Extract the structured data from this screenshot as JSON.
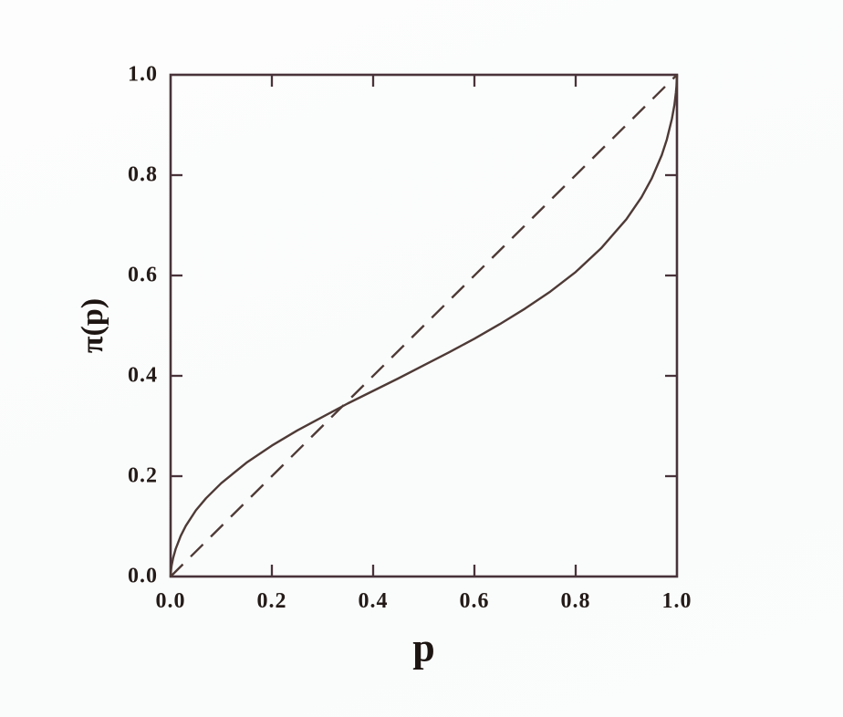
{
  "colors": {
    "background": "#fbfdfc",
    "frame": "#49333a",
    "line_ink": "#4e3a36",
    "text_ink": "#241b18"
  },
  "chart_data": {
    "type": "line",
    "title": "",
    "xlabel": "p",
    "ylabel": "π(p)",
    "xlim": [
      0,
      1
    ],
    "ylim": [
      0,
      1
    ],
    "grid": false,
    "legend": "none",
    "x_ticks": [
      0,
      0.2,
      0.4,
      0.6,
      0.8,
      1
    ],
    "y_ticks": [
      0,
      0.2,
      0.4,
      0.6,
      0.8,
      1
    ],
    "x_tick_labels": [
      "0.0",
      "0.2",
      "0.4",
      "0.6",
      "0.8",
      "1.0"
    ],
    "y_tick_labels": [
      "0.0",
      "0.2",
      "0.4",
      "0.6",
      "0.8",
      "1.0"
    ],
    "series": [
      {
        "name": "probability-weighting-function",
        "style": "solid",
        "x": [
          0,
          0.001,
          0.002,
          0.005,
          0.01,
          0.02,
          0.03,
          0.05,
          0.07,
          0.1,
          0.15,
          0.2,
          0.25,
          0.3,
          0.35,
          0.4,
          0.45,
          0.5,
          0.55,
          0.6,
          0.65,
          0.7,
          0.75,
          0.8,
          0.85,
          0.9,
          0.93,
          0.95,
          0.97,
          0.98,
          0.99,
          0.995,
          0.998,
          0.999,
          1
        ],
        "y": [
          0,
          0.014,
          0.022,
          0.037,
          0.055,
          0.081,
          0.101,
          0.132,
          0.156,
          0.186,
          0.227,
          0.261,
          0.291,
          0.318,
          0.345,
          0.37,
          0.395,
          0.421,
          0.447,
          0.474,
          0.503,
          0.534,
          0.568,
          0.607,
          0.654,
          0.712,
          0.756,
          0.793,
          0.84,
          0.871,
          0.912,
          0.94,
          0.965,
          0.977,
          1
        ]
      },
      {
        "name": "identity-diagonal",
        "style": "dashed",
        "x": [
          0,
          1
        ],
        "y": [
          0,
          1
        ]
      }
    ]
  }
}
